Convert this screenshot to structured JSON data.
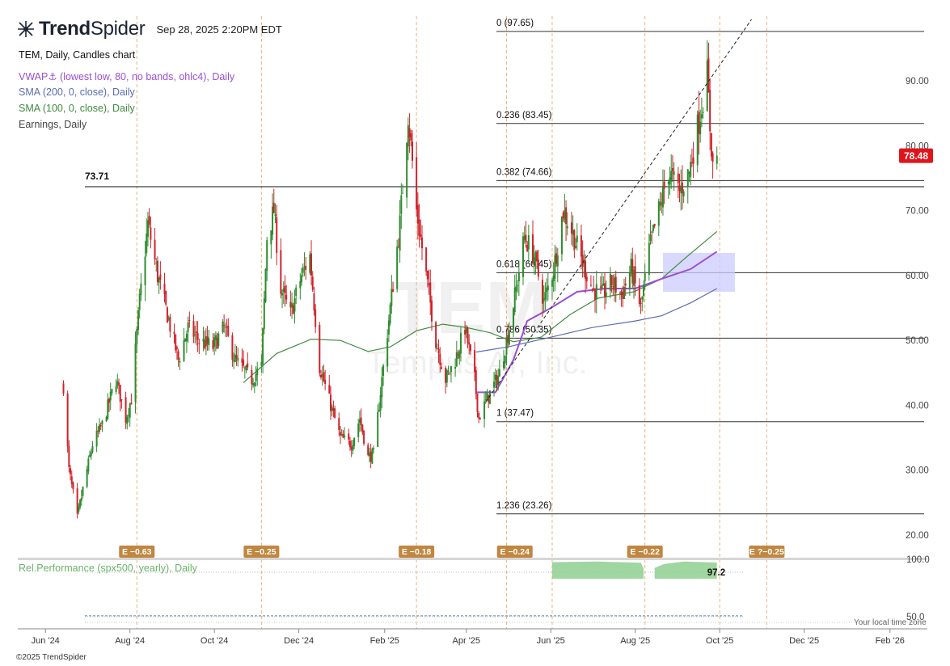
{
  "header": {
    "brand_bold": "Trend",
    "brand_light": "Spider",
    "timestamp": "Sep 28, 2025 2:20PM EDT"
  },
  "legend": {
    "main": "TEM, Daily, Candles chart",
    "vwap": "VWAP⚓ (lowest low, 80, no bands, ohlc4), Daily",
    "sma200": "SMA (200, 0, close), Daily",
    "sma100": "SMA (100, 0, close), Daily",
    "earnings": "Earnings, Daily",
    "relperf": "Rel.Performance (spx500, yearly), Daily"
  },
  "watermark": {
    "ticker": "TEM",
    "name": "Tempus AI, Inc."
  },
  "footer": {
    "copyright": "©2025 TrendSpider",
    "timezone": "Your local time zone"
  },
  "colors": {
    "up": "#2e8b2e",
    "down": "#d0222a",
    "vwap": "#9b4fd6",
    "sma200": "#5b6bb5",
    "sma100": "#3f8a3f",
    "earnings": "#c1863f",
    "relperf": "#8fcf8f",
    "price_tag": "#e0151c",
    "zone": "#ccccff"
  },
  "chart_data": {
    "type": "candlestick",
    "symbol": "TEM",
    "interval": "Daily",
    "ylim": [
      17,
      100
    ],
    "y_ticks": [
      20,
      30,
      40,
      50,
      60,
      70,
      80,
      90
    ],
    "y_tick_labels": [
      "20.00",
      "30.00",
      "40.00",
      "50.00",
      "60.00",
      "70.00",
      "80.00",
      "90.00"
    ],
    "x_labels": [
      "Jun '24",
      "Aug '24",
      "Oct '24",
      "Dec '24",
      "Feb '25",
      "Apr '25",
      "Jun '25",
      "Aug '25",
      "Oct '25",
      "Dec '25",
      "Feb '26"
    ],
    "x_label_dates": [
      "2024-06-01",
      "2024-08-01",
      "2024-10-01",
      "2024-12-01",
      "2025-02-01",
      "2025-04-01",
      "2025-06-01",
      "2025-08-01",
      "2025-10-01",
      "2025-12-01",
      "2026-02-01"
    ],
    "x_range": [
      "2024-05-12",
      "2026-02-28"
    ],
    "last_price": 78.48,
    "last_price_label": "78.48",
    "horizontal_level": {
      "value": 73.71,
      "label": "73.71"
    },
    "fib_levels": [
      {
        "ratio": "0",
        "value": 97.65,
        "label": "0 (97.65)"
      },
      {
        "ratio": "0.236",
        "value": 83.45,
        "label": "0.236 (83.45)"
      },
      {
        "ratio": "0.382",
        "value": 74.66,
        "label": "0.382 (74.66)"
      },
      {
        "ratio": "0.618",
        "value": 60.45,
        "label": "0.618 (60.45)"
      },
      {
        "ratio": "0.786",
        "value": 50.35,
        "label": "0.786 (50.35)"
      },
      {
        "ratio": "1",
        "value": 37.47,
        "label": "1 (37.47)"
      },
      {
        "ratio": "1.236",
        "value": 23.26,
        "label": "1.236 (23.26)"
      }
    ],
    "earnings": [
      {
        "date": "2024-08-06",
        "label": "E −0.63"
      },
      {
        "date": "2024-11-04",
        "label": "E −0.25"
      },
      {
        "date": "2025-02-24",
        "label": "E −0.18"
      },
      {
        "date": "2025-05-06",
        "label": "E −0.24"
      },
      {
        "date": "2025-08-08",
        "label": "E −0.22"
      },
      {
        "date": "2025-11-04",
        "label": "E ?−0.25"
      }
    ],
    "earnings_marker_dates": [
      "2024-08-06",
      "2024-11-04",
      "2025-02-24",
      "2025-04-30",
      "2025-06-02",
      "2025-08-08",
      "2025-10-01",
      "2025-11-04"
    ],
    "trendline": {
      "from": {
        "date": "2025-04-15",
        "value": 40.5
      },
      "to": {
        "date": "2025-10-24",
        "value": 99.5
      }
    },
    "zone": {
      "from_date": "2025-08-21",
      "to_date": "2025-10-12",
      "low": 57.5,
      "high": 63.5
    },
    "price_path": [
      [
        "2024-06-14",
        43
      ],
      [
        "2024-06-18",
        30
      ],
      [
        "2024-06-24",
        22.5
      ],
      [
        "2024-06-28",
        27
      ],
      [
        "2024-07-05",
        34
      ],
      [
        "2024-07-12",
        37
      ],
      [
        "2024-07-22",
        44
      ],
      [
        "2024-07-29",
        38
      ],
      [
        "2024-08-02",
        41
      ],
      [
        "2024-08-08",
        56
      ],
      [
        "2024-08-14",
        68
      ],
      [
        "2024-08-21",
        60
      ],
      [
        "2024-08-28",
        54
      ],
      [
        "2024-09-05",
        47
      ],
      [
        "2024-09-12",
        52
      ],
      [
        "2024-09-20",
        50
      ],
      [
        "2024-09-30",
        49
      ],
      [
        "2024-10-08",
        52
      ],
      [
        "2024-10-16",
        47
      ],
      [
        "2024-10-28",
        44
      ],
      [
        "2024-11-04",
        46
      ],
      [
        "2024-11-08",
        66
      ],
      [
        "2024-11-13",
        70
      ],
      [
        "2024-11-18",
        58
      ],
      [
        "2024-11-25",
        54
      ],
      [
        "2024-12-03",
        60
      ],
      [
        "2024-12-09",
        63
      ],
      [
        "2024-12-16",
        46
      ],
      [
        "2024-12-24",
        40
      ],
      [
        "2024-12-31",
        35
      ],
      [
        "2025-01-08",
        34
      ],
      [
        "2025-01-14",
        38
      ],
      [
        "2025-01-20",
        32
      ],
      [
        "2025-01-24",
        32.5
      ],
      [
        "2025-01-30",
        44
      ],
      [
        "2025-02-05",
        55
      ],
      [
        "2025-02-12",
        68
      ],
      [
        "2025-02-18",
        85
      ],
      [
        "2025-02-24",
        70
      ],
      [
        "2025-03-03",
        60
      ],
      [
        "2025-03-10",
        50
      ],
      [
        "2025-03-17",
        44
      ],
      [
        "2025-03-24",
        47
      ],
      [
        "2025-03-31",
        52
      ],
      [
        "2025-04-07",
        44
      ],
      [
        "2025-04-10",
        38
      ],
      [
        "2025-04-16",
        41
      ],
      [
        "2025-04-25",
        45
      ],
      [
        "2025-05-02",
        52
      ],
      [
        "2025-05-07",
        58
      ],
      [
        "2025-05-13",
        66
      ],
      [
        "2025-05-20",
        63
      ],
      [
        "2025-05-27",
        56
      ],
      [
        "2025-06-03",
        61
      ],
      [
        "2025-06-10",
        70
      ],
      [
        "2025-06-16",
        67
      ],
      [
        "2025-06-24",
        62
      ],
      [
        "2025-07-01",
        58
      ],
      [
        "2025-07-08",
        57
      ],
      [
        "2025-07-15",
        59
      ],
      [
        "2025-07-22",
        57
      ],
      [
        "2025-07-29",
        61
      ],
      [
        "2025-08-05",
        55
      ],
      [
        "2025-08-11",
        64
      ],
      [
        "2025-08-18",
        70
      ],
      [
        "2025-08-25",
        76
      ],
      [
        "2025-09-02",
        73
      ],
      [
        "2025-09-09",
        76
      ],
      [
        "2025-09-16",
        84
      ],
      [
        "2025-09-22",
        91
      ],
      [
        "2025-09-24",
        83
      ],
      [
        "2025-09-26",
        77
      ],
      [
        "2025-09-29",
        78.5
      ]
    ],
    "vwap_path": [
      [
        "2025-04-08",
        42
      ],
      [
        "2025-04-22",
        42
      ],
      [
        "2025-05-05",
        47
      ],
      [
        "2025-05-15",
        53
      ],
      [
        "2025-06-01",
        55
      ],
      [
        "2025-06-20",
        57.5
      ],
      [
        "2025-07-10",
        58
      ],
      [
        "2025-08-01",
        58
      ],
      [
        "2025-08-20",
        59.5
      ],
      [
        "2025-09-10",
        61
      ],
      [
        "2025-09-29",
        63.7
      ]
    ],
    "sma200_path": [
      [
        "2025-04-08",
        48.2
      ],
      [
        "2025-05-01",
        49
      ],
      [
        "2025-06-01",
        50.5
      ],
      [
        "2025-07-01",
        52
      ],
      [
        "2025-08-01",
        53
      ],
      [
        "2025-08-20",
        53.8
      ],
      [
        "2025-09-10",
        55.8
      ],
      [
        "2025-09-29",
        58
      ]
    ],
    "sma100_path": [
      [
        "2024-10-22",
        43.5
      ],
      [
        "2024-11-15",
        48
      ],
      [
        "2024-12-10",
        50.2
      ],
      [
        "2024-12-31",
        50
      ],
      [
        "2025-01-20",
        48.3
      ],
      [
        "2025-02-05",
        49
      ],
      [
        "2025-02-24",
        51.5
      ],
      [
        "2025-03-15",
        52.5
      ],
      [
        "2025-04-01",
        52
      ],
      [
        "2025-04-18",
        51.2
      ],
      [
        "2025-05-05",
        49.8
      ],
      [
        "2025-05-25",
        50.5
      ],
      [
        "2025-06-15",
        54
      ],
      [
        "2025-07-05",
        56.5
      ],
      [
        "2025-07-31",
        57.5
      ],
      [
        "2025-08-20",
        59.5
      ],
      [
        "2025-09-05",
        62.5
      ],
      [
        "2025-09-29",
        66.8
      ]
    ],
    "rel_performance": {
      "name": "Rel.Performance (spx500, yearly)",
      "ylim": [
        40,
        100
      ],
      "y_ticks": [
        50,
        100
      ],
      "y_tick_labels": [
        "50.0",
        "100.0"
      ],
      "last_value": 97.2,
      "last_label": "97.2",
      "reference_level": 50,
      "segments": [
        [
          [
            "2025-06-02",
            97.5
          ],
          [
            "2025-07-05",
            98
          ],
          [
            "2025-08-05",
            97
          ],
          [
            "2025-08-07",
            92
          ]
        ],
        [
          [
            "2025-08-15",
            92.5
          ],
          [
            "2025-08-22",
            96
          ],
          [
            "2025-09-05",
            98
          ],
          [
            "2025-09-29",
            97.2
          ]
        ]
      ]
    }
  }
}
